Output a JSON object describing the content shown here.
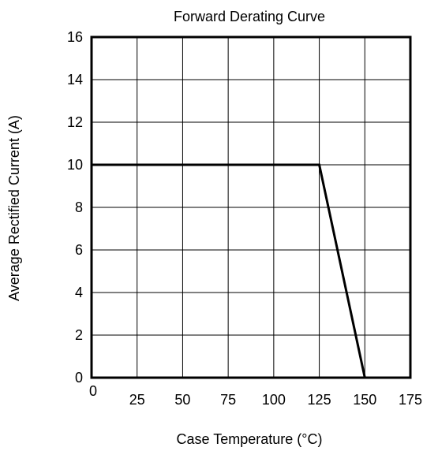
{
  "chart_data": {
    "type": "line",
    "title": "Forward Derating Curve",
    "xlabel": "Case Temperature (°C)",
    "ylabel": "Average Rectified Current (A)",
    "xlim": [
      0,
      175
    ],
    "ylim": [
      0,
      16
    ],
    "x_ticks": [
      0,
      25,
      50,
      75,
      100,
      125,
      150,
      175
    ],
    "y_ticks": [
      0,
      2,
      4,
      6,
      8,
      10,
      12,
      14,
      16
    ],
    "x_tick_labels": [
      "0",
      "25",
      "50",
      "75",
      "100",
      "125",
      "150",
      "175"
    ],
    "y_tick_labels": [
      "0",
      "2",
      "4",
      "6",
      "8",
      "10",
      "12",
      "14",
      "16"
    ],
    "grid": true,
    "series": [
      {
        "x": [
          0,
          125,
          150
        ],
        "y": [
          10,
          10,
          0
        ],
        "color": "#000000"
      }
    ]
  }
}
